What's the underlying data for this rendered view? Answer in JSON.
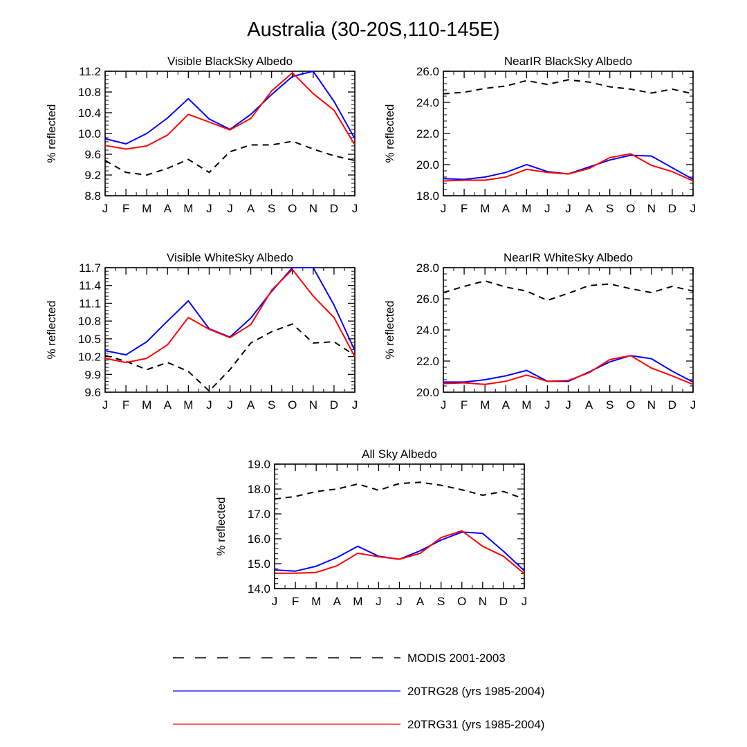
{
  "figure_title": "Australia (30-20S,110-145E)",
  "legend": [
    {
      "label": "MODIS 2001-2003",
      "color": "#000000",
      "dash": true
    },
    {
      "label": "20TRG28 (yrs 1985-2004)",
      "color": "#0000ff",
      "dash": false
    },
    {
      "label": "20TRG31 (yrs 1985-2004)",
      "color": "#ff0000",
      "dash": false
    }
  ],
  "chart_data": [
    {
      "type": "line",
      "title": "Visible BlackSky Albedo",
      "ylabel": "% reflected",
      "categories": [
        "J",
        "F",
        "M",
        "A",
        "M",
        "J",
        "J",
        "A",
        "S",
        "O",
        "N",
        "D",
        "J"
      ],
      "ylim": [
        8.8,
        11.2
      ],
      "yticks": [
        "8.8",
        "9.2",
        "9.6",
        "10.0",
        "10.4",
        "10.8",
        "11.2"
      ],
      "series": [
        {
          "name": "MODIS 2001-2003",
          "values": [
            9.48,
            9.25,
            9.2,
            9.33,
            9.5,
            9.25,
            9.65,
            9.78,
            9.78,
            9.85,
            9.7,
            9.57,
            9.48
          ]
        },
        {
          "name": "20TRG28 (yrs 1985-2004)",
          "values": [
            9.9,
            9.8,
            10.0,
            10.3,
            10.67,
            10.28,
            10.08,
            10.37,
            10.75,
            11.1,
            11.2,
            10.62,
            9.9
          ]
        },
        {
          "name": "20TRG31 (yrs 1985-2004)",
          "values": [
            9.77,
            9.7,
            9.76,
            9.97,
            10.37,
            10.22,
            10.07,
            10.29,
            10.82,
            11.17,
            10.77,
            10.45,
            9.78
          ]
        }
      ]
    },
    {
      "type": "line",
      "title": "NearIR BlackSky Albedo",
      "ylabel": "% reflected",
      "categories": [
        "J",
        "F",
        "M",
        "A",
        "M",
        "J",
        "J",
        "A",
        "S",
        "O",
        "N",
        "D",
        "J"
      ],
      "ylim": [
        18.0,
        26.0
      ],
      "yticks": [
        "18.0",
        "20.0",
        "22.0",
        "24.0",
        "26.0"
      ],
      "series": [
        {
          "name": "MODIS 2001-2003",
          "values": [
            24.55,
            24.65,
            24.9,
            25.05,
            25.4,
            25.15,
            25.45,
            25.3,
            25.0,
            24.85,
            24.6,
            24.85,
            24.55
          ]
        },
        {
          "name": "20TRG28 (yrs 1985-2004)",
          "values": [
            19.1,
            19.05,
            19.2,
            19.5,
            20.0,
            19.55,
            19.4,
            19.85,
            20.3,
            20.6,
            20.55,
            19.8,
            19.05
          ]
        },
        {
          "name": "20TRG31 (yrs 1985-2004)",
          "values": [
            18.95,
            19.0,
            19.0,
            19.2,
            19.7,
            19.5,
            19.4,
            19.75,
            20.45,
            20.7,
            19.95,
            19.55,
            18.95
          ]
        }
      ]
    },
    {
      "type": "line",
      "title": "Visible WhiteSky Albedo",
      "ylabel": "% reflected",
      "categories": [
        "J",
        "F",
        "M",
        "A",
        "M",
        "J",
        "J",
        "A",
        "S",
        "O",
        "N",
        "D",
        "J"
      ],
      "ylim": [
        9.6,
        11.7
      ],
      "yticks": [
        "9.6",
        "9.9",
        "10.2",
        "10.5",
        "10.8",
        "11.1",
        "11.4",
        "11.7"
      ],
      "series": [
        {
          "name": "MODIS 2001-2003",
          "values": [
            10.22,
            10.12,
            9.98,
            10.1,
            9.95,
            9.62,
            9.98,
            10.43,
            10.62,
            10.75,
            10.43,
            10.45,
            10.22
          ]
        },
        {
          "name": "20TRG28 (yrs 1985-2004)",
          "values": [
            10.3,
            10.23,
            10.45,
            10.8,
            11.14,
            10.67,
            10.53,
            10.85,
            11.3,
            11.7,
            11.7,
            11.07,
            10.3
          ]
        },
        {
          "name": "20TRG31 (yrs 1985-2004)",
          "values": [
            10.17,
            10.1,
            10.17,
            10.4,
            10.86,
            10.66,
            10.52,
            10.74,
            11.32,
            11.67,
            11.22,
            10.86,
            10.2
          ]
        }
      ]
    },
    {
      "type": "line",
      "title": "NearIR WhiteSky Albedo",
      "ylabel": "% reflected",
      "categories": [
        "J",
        "F",
        "M",
        "A",
        "M",
        "J",
        "J",
        "A",
        "S",
        "O",
        "N",
        "D",
        "J"
      ],
      "ylim": [
        20.0,
        28.0
      ],
      "yticks": [
        "20.0",
        "22.0",
        "24.0",
        "26.0",
        "28.0"
      ],
      "series": [
        {
          "name": "MODIS 2001-2003",
          "values": [
            26.4,
            26.8,
            27.15,
            26.75,
            26.5,
            25.9,
            26.35,
            26.85,
            26.95,
            26.65,
            26.4,
            26.8,
            26.5
          ]
        },
        {
          "name": "20TRG28 (yrs 1985-2004)",
          "values": [
            20.65,
            20.65,
            20.8,
            21.05,
            21.4,
            20.7,
            20.7,
            21.3,
            21.95,
            22.35,
            22.15,
            21.35,
            20.65
          ]
        },
        {
          "name": "20TRG31 (yrs 1985-2004)",
          "values": [
            20.55,
            20.6,
            20.5,
            20.7,
            21.1,
            20.7,
            20.75,
            21.25,
            22.1,
            22.35,
            21.55,
            21.05,
            20.5
          ]
        }
      ]
    },
    {
      "type": "line",
      "title": "All Sky Albedo",
      "ylabel": "% reflected",
      "categories": [
        "J",
        "F",
        "M",
        "A",
        "M",
        "J",
        "J",
        "A",
        "S",
        "O",
        "N",
        "D",
        "J"
      ],
      "ylim": [
        14.0,
        19.0
      ],
      "yticks": [
        "14.0",
        "15.0",
        "16.0",
        "17.0",
        "18.0",
        "19.0"
      ],
      "series": [
        {
          "name": "MODIS 2001-2003",
          "values": [
            17.6,
            17.7,
            17.9,
            18.0,
            18.2,
            17.95,
            18.22,
            18.27,
            18.15,
            17.97,
            17.75,
            17.9,
            17.6
          ]
        },
        {
          "name": "20TRG28 (yrs 1985-2004)",
          "values": [
            14.75,
            14.7,
            14.9,
            15.25,
            15.7,
            15.3,
            15.18,
            15.52,
            15.95,
            16.27,
            16.22,
            15.5,
            14.72
          ]
        },
        {
          "name": "20TRG31 (yrs 1985-2004)",
          "values": [
            14.62,
            14.62,
            14.65,
            14.92,
            15.42,
            15.28,
            15.18,
            15.42,
            16.05,
            16.32,
            15.7,
            15.3,
            14.6
          ]
        }
      ]
    }
  ]
}
